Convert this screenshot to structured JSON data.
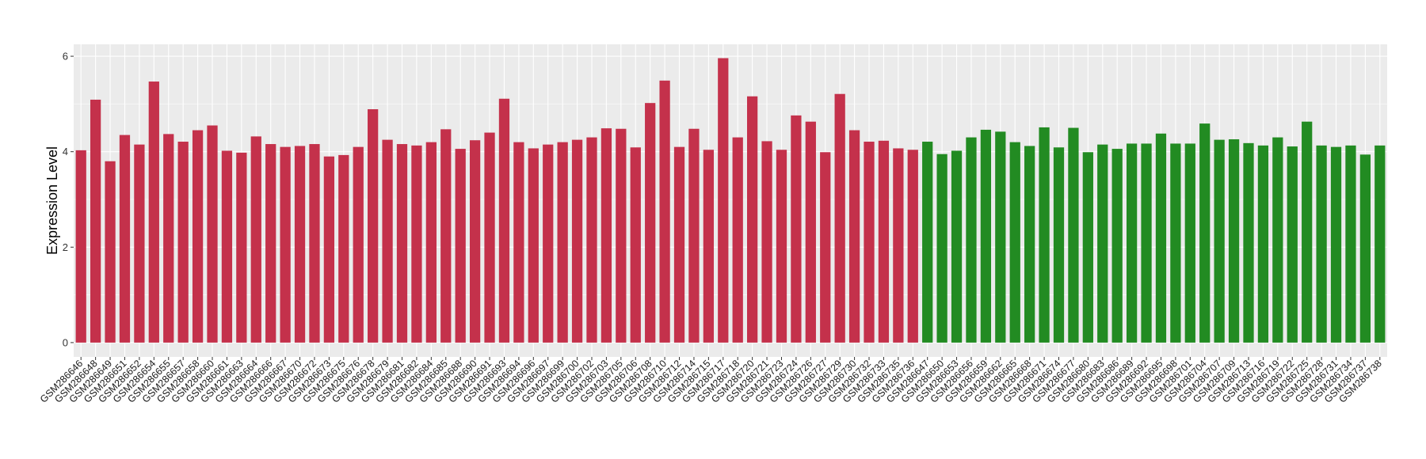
{
  "chart_data": {
    "type": "bar",
    "title": "",
    "xlabel": "",
    "ylabel": "Expression Level",
    "ylim": [
      -0.3,
      6.25
    ],
    "yticks": [
      0,
      2,
      4,
      6
    ],
    "grid": true,
    "legend": "none",
    "colors": {
      "group1": "#c4314b",
      "group2": "#228b22",
      "panel": "#ebebeb",
      "gridline": "#ffffff"
    },
    "categories": [
      "GSM286646",
      "GSM286648",
      "GSM286649",
      "GSM286651",
      "GSM286652",
      "GSM286654",
      "GSM286655",
      "GSM286657",
      "GSM286658",
      "GSM286660",
      "GSM286661",
      "GSM286663",
      "GSM286664",
      "GSM286666",
      "GSM286667",
      "GSM286670",
      "GSM286672",
      "GSM286673",
      "GSM286675",
      "GSM286676",
      "GSM286678",
      "GSM286679",
      "GSM286681",
      "GSM286682",
      "GSM286684",
      "GSM286685",
      "GSM286688",
      "GSM286690",
      "GSM286691",
      "GSM286693",
      "GSM286694",
      "GSM286696",
      "GSM286697",
      "GSM286699",
      "GSM286700",
      "GSM286702",
      "GSM286703",
      "GSM286705",
      "GSM286706",
      "GSM286708",
      "GSM286710",
      "GSM286712",
      "GSM286714",
      "GSM286715",
      "GSM286717",
      "GSM286718",
      "GSM286720",
      "GSM286721",
      "GSM286723",
      "GSM286724",
      "GSM286726",
      "GSM286727",
      "GSM286729",
      "GSM286730",
      "GSM286732",
      "GSM286733",
      "GSM286735",
      "GSM286736",
      "GSM286647",
      "GSM286650",
      "GSM286653",
      "GSM286656",
      "GSM286659",
      "GSM286662",
      "GSM286665",
      "GSM286668",
      "GSM286671",
      "GSM286674",
      "GSM286677",
      "GSM286680",
      "GSM286683",
      "GSM286686",
      "GSM286689",
      "GSM286692",
      "GSM286695",
      "GSM286698",
      "GSM286701",
      "GSM286704",
      "GSM286707",
      "GSM286709",
      "GSM286713",
      "GSM286716",
      "GSM286719",
      "GSM286722",
      "GSM286725",
      "GSM286728",
      "GSM286731",
      "GSM286734",
      "GSM286737",
      "GSM286738"
    ],
    "values": [
      4.03,
      5.09,
      3.8,
      4.35,
      4.15,
      5.47,
      4.37,
      4.21,
      4.45,
      4.55,
      4.02,
      3.98,
      4.32,
      4.16,
      4.1,
      4.12,
      4.16,
      3.9,
      3.93,
      4.1,
      4.89,
      4.25,
      4.16,
      4.13,
      4.2,
      4.47,
      4.06,
      4.24,
      4.4,
      5.11,
      4.2,
      4.07,
      4.15,
      4.2,
      4.25,
      4.3,
      4.49,
      4.48,
      4.09,
      5.02,
      5.49,
      4.1,
      4.48,
      4.04,
      5.96,
      4.3,
      5.16,
      4.22,
      4.04,
      4.76,
      4.63,
      3.99,
      5.21,
      4.45,
      4.21,
      4.23,
      4.07,
      4.04,
      4.21,
      3.95,
      4.02,
      4.3,
      4.46,
      4.42,
      4.2,
      4.12,
      4.51,
      4.09,
      4.5,
      3.99,
      4.15,
      4.06,
      4.17,
      4.17,
      4.38,
      4.17,
      4.17,
      4.59,
      4.25,
      4.26,
      4.18,
      4.13,
      4.3,
      4.11,
      4.63,
      4.13,
      4.1,
      4.13,
      3.94,
      4.13
    ],
    "groups": [
      1,
      1,
      1,
      1,
      1,
      1,
      1,
      1,
      1,
      1,
      1,
      1,
      1,
      1,
      1,
      1,
      1,
      1,
      1,
      1,
      1,
      1,
      1,
      1,
      1,
      1,
      1,
      1,
      1,
      1,
      1,
      1,
      1,
      1,
      1,
      1,
      1,
      1,
      1,
      1,
      1,
      1,
      1,
      1,
      1,
      1,
      1,
      1,
      1,
      1,
      1,
      1,
      1,
      1,
      1,
      1,
      1,
      1,
      2,
      2,
      2,
      2,
      2,
      2,
      2,
      2,
      2,
      2,
      2,
      2,
      2,
      2,
      2,
      2,
      2,
      2,
      2,
      2,
      2,
      2,
      2,
      2,
      2,
      2,
      2,
      2,
      2,
      2,
      2,
      2
    ]
  }
}
